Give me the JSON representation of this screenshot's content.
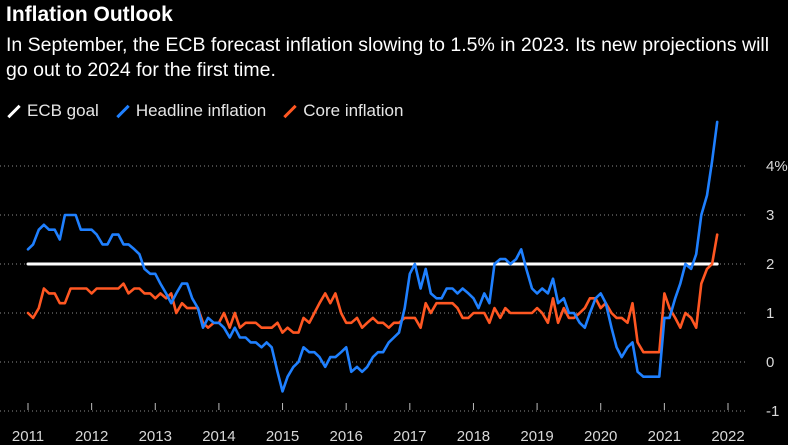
{
  "header": {
    "title": "Inflation Outlook",
    "subtitle": "In September, the ECB forecast inflation slowing to 1.5% in 2023. Its new projections will go out to 2024 for the first time."
  },
  "colors": {
    "background": "#000000",
    "goal": "#ffffff",
    "headline": "#1f80ff",
    "core": "#ff5722",
    "grid": "#8c8c8c"
  },
  "chart_data": {
    "type": "line",
    "title": "Inflation Outlook",
    "xlabel": "",
    "ylabel": "",
    "unit": "%",
    "xlim": [
      2011.0,
      2022.5
    ],
    "ylim": [
      -1.5,
      5.0
    ],
    "gridlines_y": [
      -1,
      0,
      1,
      2,
      3,
      4
    ],
    "y_ticks": [
      {
        "value": 4,
        "label": "4%"
      },
      {
        "value": 3,
        "label": "3"
      },
      {
        "value": 2,
        "label": "2"
      },
      {
        "value": 1,
        "label": "1"
      },
      {
        "value": 0,
        "label": "0"
      },
      {
        "value": -1,
        "label": "-1"
      }
    ],
    "x_ticks": [
      {
        "value": 2011,
        "label": "2011"
      },
      {
        "value": 2012,
        "label": "2012"
      },
      {
        "value": 2013,
        "label": "2013"
      },
      {
        "value": 2014,
        "label": "2014"
      },
      {
        "value": 2015,
        "label": "2015"
      },
      {
        "value": 2016,
        "label": "2016"
      },
      {
        "value": 2017,
        "label": "2017"
      },
      {
        "value": 2018,
        "label": "2018"
      },
      {
        "value": 2019,
        "label": "2019"
      },
      {
        "value": 2020,
        "label": "2020"
      },
      {
        "value": 2021,
        "label": "2021"
      },
      {
        "value": 2022,
        "label": "2022"
      }
    ],
    "series": [
      {
        "name": "ECB goal",
        "key": "goal",
        "x": [
          2011.0,
          2021.83
        ],
        "y": [
          2.0,
          2.0
        ]
      },
      {
        "name": "Headline inflation",
        "key": "headline",
        "x": [
          2011.0,
          2011.08,
          2011.17,
          2011.25,
          2011.33,
          2011.42,
          2011.5,
          2011.58,
          2011.67,
          2011.75,
          2011.83,
          2011.92,
          2012.0,
          2012.08,
          2012.17,
          2012.25,
          2012.33,
          2012.42,
          2012.5,
          2012.58,
          2012.67,
          2012.75,
          2012.83,
          2012.92,
          2013.0,
          2013.08,
          2013.17,
          2013.25,
          2013.33,
          2013.42,
          2013.5,
          2013.58,
          2013.67,
          2013.75,
          2013.83,
          2013.92,
          2014.0,
          2014.08,
          2014.17,
          2014.25,
          2014.33,
          2014.42,
          2014.5,
          2014.58,
          2014.67,
          2014.75,
          2014.83,
          2014.92,
          2015.0,
          2015.08,
          2015.17,
          2015.25,
          2015.33,
          2015.42,
          2015.5,
          2015.58,
          2015.67,
          2015.75,
          2015.83,
          2015.92,
          2016.0,
          2016.08,
          2016.17,
          2016.25,
          2016.33,
          2016.42,
          2016.5,
          2016.58,
          2016.67,
          2016.75,
          2016.83,
          2016.92,
          2017.0,
          2017.08,
          2017.17,
          2017.25,
          2017.33,
          2017.42,
          2017.5,
          2017.58,
          2017.67,
          2017.75,
          2017.83,
          2017.92,
          2018.0,
          2018.08,
          2018.17,
          2018.25,
          2018.33,
          2018.42,
          2018.5,
          2018.58,
          2018.67,
          2018.75,
          2018.83,
          2018.92,
          2019.0,
          2019.08,
          2019.17,
          2019.25,
          2019.33,
          2019.42,
          2019.5,
          2019.58,
          2019.67,
          2019.75,
          2019.83,
          2019.92,
          2020.0,
          2020.08,
          2020.17,
          2020.25,
          2020.33,
          2020.42,
          2020.5,
          2020.58,
          2020.67,
          2020.75,
          2020.83,
          2020.92,
          2021.0,
          2021.08,
          2021.17,
          2021.25,
          2021.33,
          2021.42,
          2021.5,
          2021.58,
          2021.67,
          2021.75,
          2021.83
        ],
        "y": [
          2.3,
          2.4,
          2.7,
          2.8,
          2.7,
          2.7,
          2.5,
          3.0,
          3.0,
          3.0,
          2.7,
          2.7,
          2.7,
          2.6,
          2.4,
          2.4,
          2.6,
          2.6,
          2.4,
          2.4,
          2.3,
          2.2,
          1.9,
          1.8,
          1.8,
          1.6,
          1.4,
          1.2,
          1.4,
          1.6,
          1.6,
          1.3,
          1.1,
          0.7,
          0.9,
          0.8,
          0.8,
          0.7,
          0.5,
          0.7,
          0.5,
          0.5,
          0.4,
          0.4,
          0.3,
          0.4,
          0.3,
          -0.2,
          -0.6,
          -0.3,
          -0.1,
          0.0,
          0.3,
          0.2,
          0.2,
          0.1,
          -0.1,
          0.1,
          0.1,
          0.2,
          0.3,
          -0.2,
          -0.1,
          -0.2,
          -0.1,
          0.1,
          0.2,
          0.2,
          0.4,
          0.5,
          0.6,
          1.1,
          1.8,
          2.0,
          1.5,
          1.9,
          1.4,
          1.3,
          1.3,
          1.5,
          1.5,
          1.4,
          1.5,
          1.4,
          1.3,
          1.1,
          1.4,
          1.2,
          2.0,
          2.1,
          2.1,
          2.0,
          2.1,
          2.3,
          1.9,
          1.5,
          1.4,
          1.5,
          1.4,
          1.7,
          1.2,
          1.3,
          1.0,
          1.0,
          0.8,
          0.7,
          1.0,
          1.3,
          1.4,
          1.2,
          0.7,
          0.3,
          0.1,
          0.3,
          0.4,
          -0.2,
          -0.3,
          -0.3,
          -0.3,
          -0.3,
          0.9,
          0.9,
          1.3,
          1.6,
          2.0,
          1.9,
          2.2,
          3.0,
          3.4,
          4.1,
          4.9
        ]
      },
      {
        "name": "Core inflation",
        "key": "core",
        "x": [
          2011.0,
          2011.08,
          2011.17,
          2011.25,
          2011.33,
          2011.42,
          2011.5,
          2011.58,
          2011.67,
          2011.75,
          2011.83,
          2011.92,
          2012.0,
          2012.08,
          2012.17,
          2012.25,
          2012.33,
          2012.42,
          2012.5,
          2012.58,
          2012.67,
          2012.75,
          2012.83,
          2012.92,
          2013.0,
          2013.08,
          2013.17,
          2013.25,
          2013.33,
          2013.42,
          2013.5,
          2013.58,
          2013.67,
          2013.75,
          2013.83,
          2013.92,
          2014.0,
          2014.08,
          2014.17,
          2014.25,
          2014.33,
          2014.42,
          2014.5,
          2014.58,
          2014.67,
          2014.75,
          2014.83,
          2014.92,
          2015.0,
          2015.08,
          2015.17,
          2015.25,
          2015.33,
          2015.42,
          2015.5,
          2015.58,
          2015.67,
          2015.75,
          2015.83,
          2015.92,
          2016.0,
          2016.08,
          2016.17,
          2016.25,
          2016.33,
          2016.42,
          2016.5,
          2016.58,
          2016.67,
          2016.75,
          2016.83,
          2016.92,
          2017.0,
          2017.08,
          2017.17,
          2017.25,
          2017.33,
          2017.42,
          2017.5,
          2017.58,
          2017.67,
          2017.75,
          2017.83,
          2017.92,
          2018.0,
          2018.08,
          2018.17,
          2018.25,
          2018.33,
          2018.42,
          2018.5,
          2018.58,
          2018.67,
          2018.75,
          2018.83,
          2018.92,
          2019.0,
          2019.08,
          2019.17,
          2019.25,
          2019.33,
          2019.42,
          2019.5,
          2019.58,
          2019.67,
          2019.75,
          2019.83,
          2019.92,
          2020.0,
          2020.08,
          2020.17,
          2020.25,
          2020.33,
          2020.42,
          2020.5,
          2020.58,
          2020.67,
          2020.75,
          2020.83,
          2020.92,
          2021.0,
          2021.08,
          2021.17,
          2021.25,
          2021.33,
          2021.42,
          2021.5,
          2021.58,
          2021.67,
          2021.75,
          2021.83
        ],
        "y": [
          1.0,
          0.9,
          1.1,
          1.5,
          1.4,
          1.4,
          1.2,
          1.2,
          1.5,
          1.5,
          1.5,
          1.5,
          1.4,
          1.5,
          1.5,
          1.5,
          1.5,
          1.5,
          1.6,
          1.4,
          1.5,
          1.5,
          1.4,
          1.4,
          1.3,
          1.4,
          1.3,
          1.4,
          1.0,
          1.2,
          1.1,
          1.1,
          1.1,
          0.8,
          0.7,
          0.8,
          0.8,
          1.0,
          0.7,
          1.0,
          0.7,
          0.8,
          0.8,
          0.8,
          0.7,
          0.7,
          0.7,
          0.8,
          0.6,
          0.7,
          0.6,
          0.6,
          0.9,
          0.8,
          1.0,
          1.2,
          1.4,
          1.2,
          1.4,
          1.0,
          0.8,
          0.8,
          0.9,
          0.7,
          0.8,
          0.9,
          0.8,
          0.8,
          0.7,
          0.8,
          0.8,
          0.9,
          0.9,
          0.9,
          0.7,
          1.2,
          1.0,
          1.2,
          1.2,
          1.2,
          1.2,
          1.1,
          0.9,
          0.9,
          1.0,
          1.0,
          1.0,
          0.8,
          1.1,
          0.9,
          1.1,
          1.0,
          1.0,
          1.0,
          1.0,
          1.0,
          1.1,
          1.0,
          0.8,
          1.3,
          0.8,
          1.1,
          0.9,
          0.9,
          1.0,
          1.1,
          1.3,
          1.3,
          1.1,
          1.2,
          1.0,
          0.9,
          0.9,
          0.8,
          1.2,
          0.4,
          0.2,
          0.2,
          0.2,
          0.2,
          1.4,
          1.1,
          0.9,
          0.7,
          1.0,
          0.9,
          0.7,
          1.6,
          1.9,
          2.0,
          2.6
        ]
      }
    ]
  }
}
